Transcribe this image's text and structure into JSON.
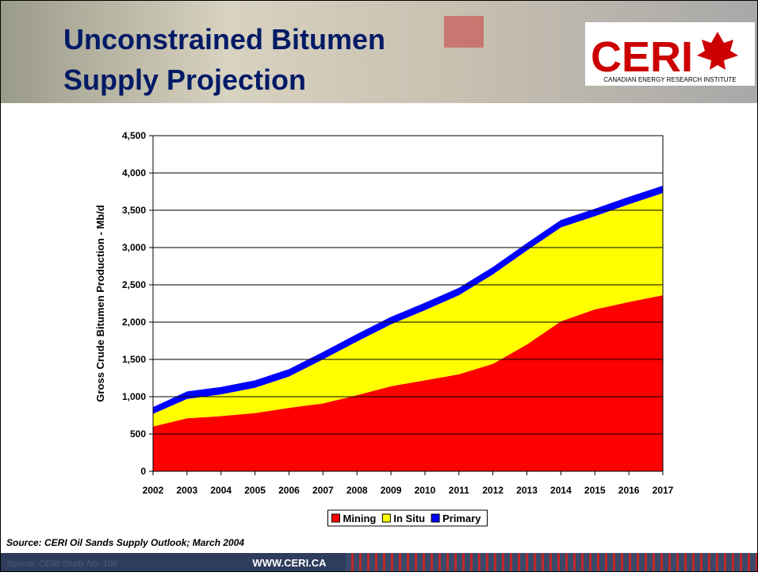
{
  "header": {
    "title_lines": [
      "Unconstrained Bitumen",
      "Supply Projection"
    ],
    "logo": "CERI",
    "logo_caption": "CANADIAN ENERGY RESEARCH INSTITUTE"
  },
  "source": "Source: CERI Oil Sands Supply Outlook; March 2004",
  "footer": {
    "study": "Source: CERI Study No. 108",
    "url": "WWW.CERI.CA"
  },
  "chart_data": {
    "type": "stacked_area",
    "y_label": "Gross Crude Bitumen Production - Mb/d",
    "x": [
      2002,
      2003,
      2004,
      2005,
      2006,
      2007,
      2008,
      2009,
      2010,
      2011,
      2012,
      2013,
      2014,
      2015,
      2016,
      2017
    ],
    "xlim": [
      2002,
      2017
    ],
    "xticks": [
      2002,
      2003,
      2004,
      2005,
      2006,
      2007,
      2008,
      2009,
      2010,
      2011,
      2012,
      2013,
      2014,
      2015,
      2016,
      2017
    ],
    "ylim": [
      0,
      4500
    ],
    "yticks": [
      0,
      500,
      {
        "value": 1000,
        "label": "1,000"
      },
      {
        "value": 1500,
        "label": "1,500"
      },
      {
        "value": 2000,
        "label": "2,000"
      },
      {
        "value": 2500,
        "label": "2,500"
      },
      {
        "value": 3000,
        "label": "3,000"
      },
      {
        "value": 3500,
        "label": "3,500"
      },
      {
        "value": 4000,
        "label": "4,000"
      },
      {
        "value": 4500,
        "label": "4,500"
      }
    ],
    "grid": true,
    "legend": "bottom",
    "series": [
      {
        "name": "Mining",
        "color": "#ff0000",
        "values": [
          600,
          710,
          740,
          780,
          850,
          910,
          1020,
          1140,
          1220,
          1300,
          1440,
          1700,
          2010,
          2170,
          2270,
          2360
        ]
      },
      {
        "name": "In Situ",
        "color": "#ffff00",
        "values": [
          170,
          260,
          290,
          340,
          420,
          590,
          720,
          830,
          940,
          1060,
          1200,
          1260,
          1260,
          1250,
          1310,
          1370
        ]
      },
      {
        "name": "Primary",
        "color": "#0000ff",
        "values": [
          90,
          100,
          100,
          100,
          100,
          100,
          100,
          100,
          100,
          100,
          100,
          100,
          100,
          100,
          100,
          100
        ]
      }
    ]
  }
}
